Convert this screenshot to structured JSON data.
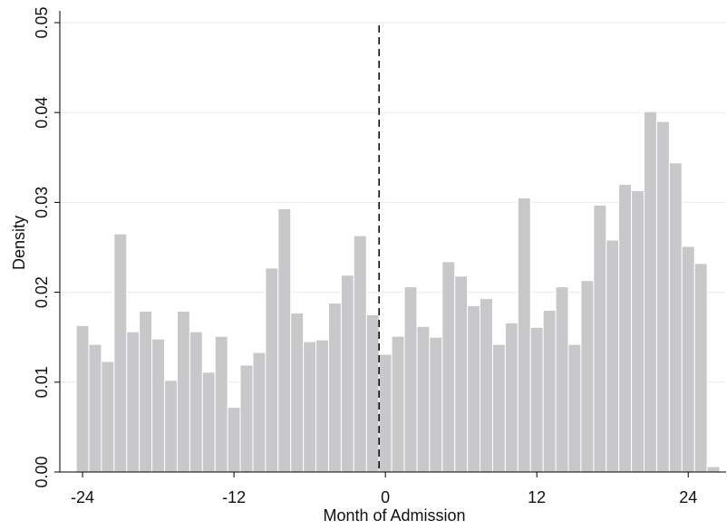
{
  "chart_data": {
    "type": "histogram",
    "xlabel": "Month of Admission",
    "ylabel": "Density",
    "bins": [
      -24.5,
      -23.5,
      -22.5,
      -21.5,
      -20.5,
      -19.5,
      -18.5,
      -17.5,
      -16.5,
      -15.5,
      -14.5,
      -13.5,
      -12.5,
      -11.5,
      -10.5,
      -9.5,
      -8.5,
      -7.5,
      -6.5,
      -5.5,
      -4.5,
      -3.5,
      -2.5,
      -1.5,
      -0.5,
      0.5,
      1.5,
      2.5,
      3.5,
      4.5,
      5.5,
      6.5,
      7.5,
      8.5,
      9.5,
      10.5,
      11.5,
      12.5,
      13.5,
      14.5,
      15.5,
      16.5,
      17.5,
      18.5,
      19.5,
      20.5,
      21.5,
      22.5,
      23.5,
      24.5,
      25.5,
      26.5
    ],
    "values": [
      0.0163,
      0.0142,
      0.0123,
      0.0265,
      0.0156,
      0.0179,
      0.0148,
      0.0102,
      0.0179,
      0.0156,
      0.0111,
      0.0151,
      0.0072,
      0.0119,
      0.0133,
      0.0227,
      0.0293,
      0.0177,
      0.0145,
      0.0147,
      0.0188,
      0.0219,
      0.0263,
      0.0175,
      0.0131,
      0.0151,
      0.0206,
      0.0162,
      0.015,
      0.0234,
      0.0218,
      0.0185,
      0.0193,
      0.0142,
      0.0166,
      0.0305,
      0.0161,
      0.018,
      0.0206,
      0.0142,
      0.0213,
      0.0297,
      0.0258,
      0.032,
      0.0313,
      0.0401,
      0.039,
      0.0344,
      0.0251,
      0.0232,
      0.0006
    ],
    "color": "#c8c7c9",
    "xlim": [
      -25.8,
      27
    ],
    "xticks": [
      -24,
      -12,
      0,
      12,
      24
    ],
    "ylim": [
      0,
      0.05
    ],
    "yticks": [
      {
        "value": 0,
        "label": "0.00"
      },
      0.01,
      0.02,
      0.03,
      0.04,
      0.05
    ],
    "grid": true,
    "vline": -0.5
  }
}
